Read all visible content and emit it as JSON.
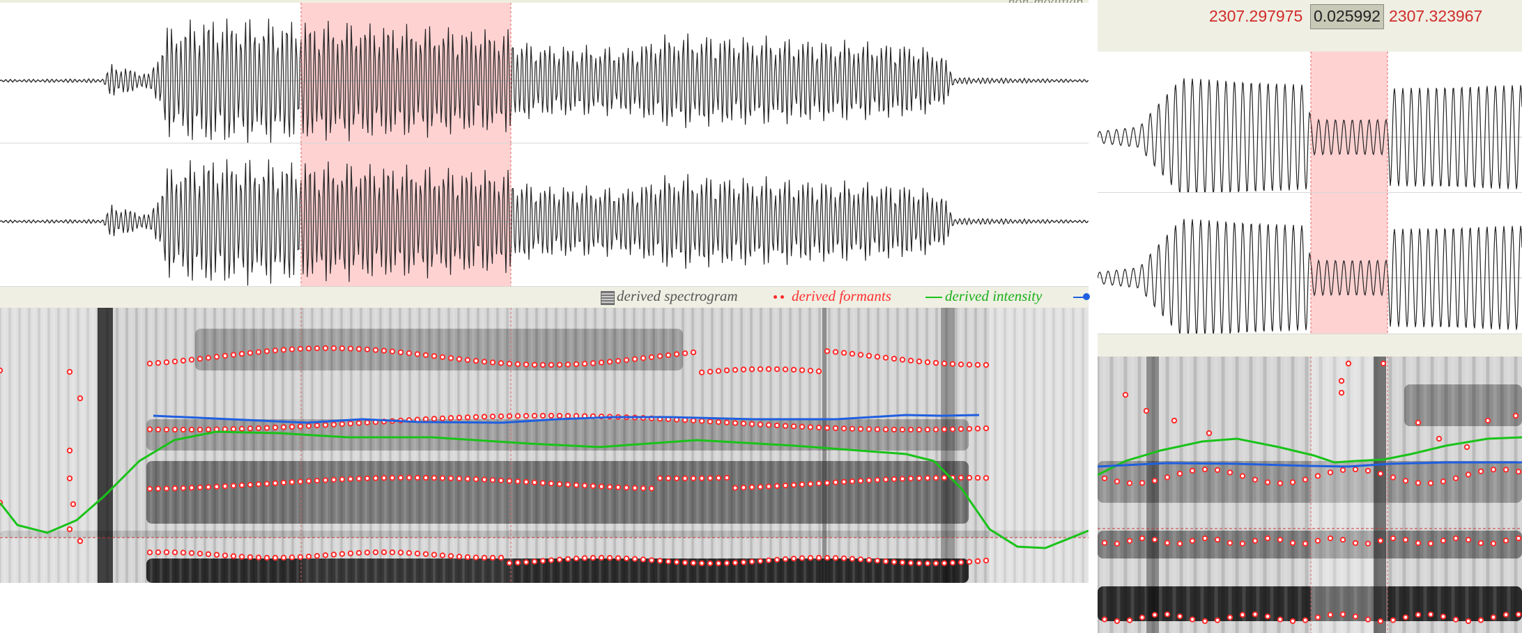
{
  "top_right_partial_label": "non-modifiab",
  "legend": {
    "spectrogram": "derived spectrogram",
    "formants": "derived formants",
    "intensity": "derived intensity"
  },
  "selection": {
    "start": "2307.297975",
    "duration": "0.025992",
    "end": "2307.323967"
  },
  "colors": {
    "selection_fill": "#ffd2d2",
    "selection_line": "#e06060",
    "formant_dot": "#ff2a2a",
    "intensity_curve": "#19c319",
    "pitch_curve": "#1f5fe0",
    "header_bg": "#efefe3",
    "selection_text": "#d12a2a"
  },
  "icons": {
    "spectrogram_legend": "spectrogram-swatch-icon",
    "formants_legend": "formant-dots-icon",
    "intensity_legend": "intensity-line-icon",
    "pitch_legend": "pitch-line-icon"
  }
}
